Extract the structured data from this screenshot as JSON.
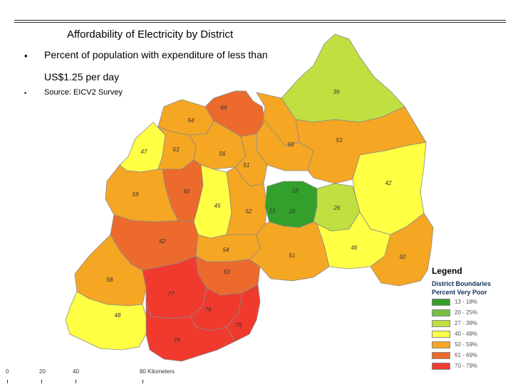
{
  "slide": {
    "title": "Affordability of Electricity by District",
    "bullet_1_line1": "Percent of population with expenditure of less than",
    "bullet_1_line2": "US$1.25 per  day",
    "bullet_2": "Source: EICV2 Survey",
    "bullet_symbol": "•"
  },
  "map": {
    "district_values": {
      "north_east": "39",
      "north_top": "69",
      "north_left": "54",
      "west_47": "47",
      "c53a": "53",
      "c56": "56",
      "c58": "58",
      "e53": "53",
      "c51": "51",
      "east_42": "42",
      "west_59": "59",
      "w60": "60",
      "c45": "45",
      "c52": "52",
      "k18": "18",
      "k13": "13",
      "k20": "20",
      "e26": "26",
      "sw62": "62",
      "c54": "54",
      "c51b": "51",
      "e46": "46",
      "se50": "50",
      "s63": "63",
      "sw58": "58",
      "s77": "77",
      "s79a": "79",
      "s79b": "79",
      "s79c": "79",
      "sw48": "48"
    },
    "colors": {
      "green_dark": "#33a02c",
      "green_mid": "#78c040",
      "green_light": "#bfe040",
      "yellow": "#ffff44",
      "orange": "#f5a623",
      "orange_dark": "#ec6a2c",
      "red": "#f03a2e"
    }
  },
  "legend": {
    "title": "Legend",
    "subtitle": "District Boundaries",
    "subtitle2": "Percent Very Poor",
    "items": [
      {
        "label": "13 - 18%",
        "color": "#33a02c"
      },
      {
        "label": "20 - 25%",
        "color": "#78c040"
      },
      {
        "label": "27 - 38%",
        "color": "#bfe040"
      },
      {
        "label": "40 - 48%",
        "color": "#ffff44"
      },
      {
        "label": "50 - 59%",
        "color": "#f5a623"
      },
      {
        "label": "61 - 69%",
        "color": "#ec6a2c"
      },
      {
        "label": "70 - 79%",
        "color": "#f03a2e"
      }
    ]
  },
  "scale_bar": {
    "labels": [
      "0",
      "20",
      "40",
      "80 Kilometers"
    ]
  }
}
